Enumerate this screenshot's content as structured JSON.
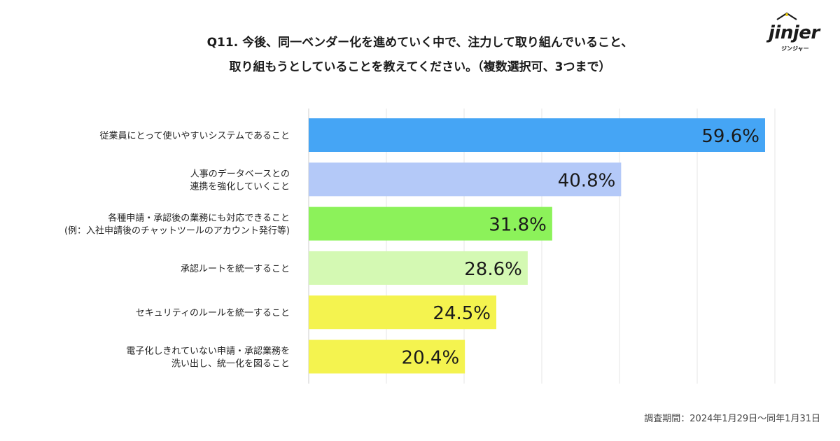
{
  "title": {
    "line1": "Q11. 今後、同一ベンダー化を進めていく中で、注力して取り組んでいること、",
    "line2": "取り組もうとしていることを教えてください。（複数選択可、3つまで）"
  },
  "logo": {
    "word": "jinjer",
    "sub": "ジンジャー",
    "icon": "house-roof-icon"
  },
  "footnote": "調査期間：2024年1月29日〜同年1月31日",
  "chart_data": {
    "type": "bar",
    "orientation": "horizontal",
    "categories": [
      [
        "従業員にとって使いやすいシステムであること"
      ],
      [
        "人事のデータベースとの",
        "連携を強化していくこと"
      ],
      [
        "各種申請・承認後の業務にも対応できること",
        "(例：入社申請後のチャットツールのアカウント発行等)"
      ],
      [
        "承認ルートを統一すること"
      ],
      [
        "セキュリティのルールを統一すること"
      ],
      [
        "電子化しきれていない申請・承認業務を",
        "洗い出し、統一化を図ること"
      ]
    ],
    "values": [
      59.6,
      40.8,
      31.8,
      28.6,
      24.5,
      20.4
    ],
    "value_labels": [
      "59.6%",
      "40.8%",
      "31.8%",
      "28.6%",
      "24.5%",
      "20.4%"
    ],
    "colors": [
      "#45a5f5",
      "#b4c9f8",
      "#8cf25a",
      "#d4f9b3",
      "#f4f34f",
      "#f4f34f"
    ],
    "xlim": [
      0,
      60
    ],
    "grid": true,
    "gridline_count": 6
  }
}
